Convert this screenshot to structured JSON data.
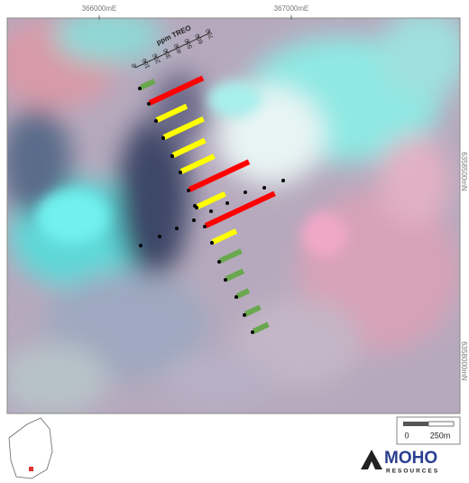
{
  "map": {
    "x_labels": [
      "366000mE",
      "367000mE"
    ],
    "y_labels": [
      "6358500mN",
      "6358000mN"
    ],
    "legend": {
      "title": "ppm TREO",
      "ticks": [
        0,
        100,
        200,
        300,
        400,
        500,
        600,
        700
      ]
    },
    "bars": {
      "values": [
        130,
        500,
        280,
        370,
        300,
        310,
        560,
        260,
        650,
        220,
        200,
        160,
        110,
        140,
        140
      ],
      "colors": [
        "#6aa84f",
        "#ff0000",
        "#ffff00",
        "#ffff00",
        "#ffff00",
        "#ffff00",
        "#ff0000",
        "#ffff00",
        "#ff0000",
        "#ffff00",
        "#6aa84f",
        "#6aa84f",
        "#6aa84f",
        "#6aa84f",
        "#6aa84f"
      ]
    },
    "scale_bar": {
      "labels": [
        "0",
        "250m"
      ]
    },
    "logo": {
      "name": "MOHO",
      "subtitle": "RESOURCES"
    }
  }
}
